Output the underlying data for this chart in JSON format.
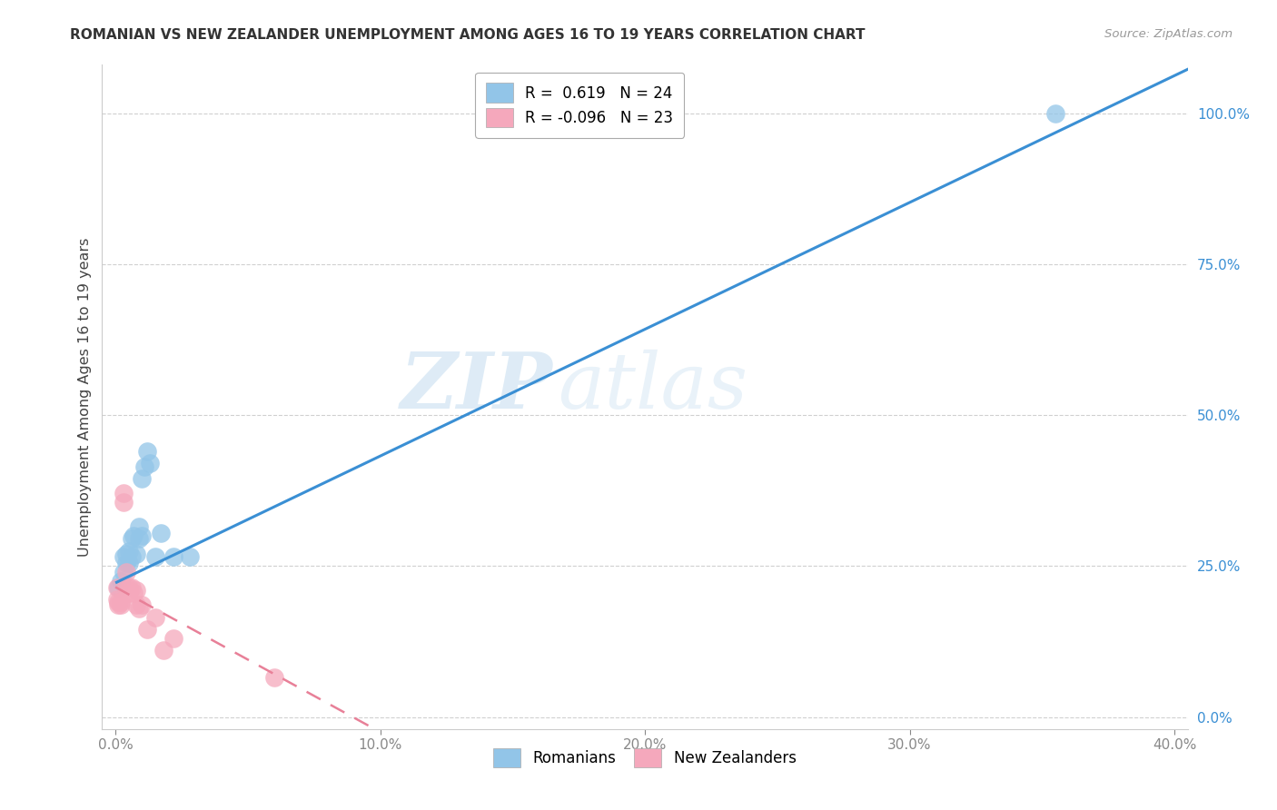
{
  "title": "ROMANIAN VS NEW ZEALANDER UNEMPLOYMENT AMONG AGES 16 TO 19 YEARS CORRELATION CHART",
  "source": "Source: ZipAtlas.com",
  "ylabel": "Unemployment Among Ages 16 to 19 years",
  "xlabel_ticks": [
    "0.0%",
    "10.0%",
    "20.0%",
    "30.0%",
    "40.0%"
  ],
  "xlabel_vals": [
    0.0,
    0.1,
    0.2,
    0.3,
    0.4
  ],
  "ylabel_ticks": [
    "0.0%",
    "25.0%",
    "50.0%",
    "75.0%",
    "100.0%"
  ],
  "ylabel_vals": [
    0.0,
    0.25,
    0.5,
    0.75,
    1.0
  ],
  "xlim": [
    -0.005,
    0.405
  ],
  "ylim": [
    -0.02,
    1.08
  ],
  "romanians_R": 0.619,
  "romanians_N": 24,
  "newzealanders_R": -0.096,
  "newzealanders_N": 23,
  "romanian_color": "#92c5e8",
  "newzealander_color": "#f5a8bc",
  "romanian_line_color": "#3a8fd4",
  "newzealander_line_color": "#e88098",
  "romanians_x": [
    0.001,
    0.002,
    0.003,
    0.003,
    0.004,
    0.004,
    0.005,
    0.005,
    0.006,
    0.006,
    0.007,
    0.008,
    0.009,
    0.009,
    0.01,
    0.01,
    0.011,
    0.012,
    0.013,
    0.015,
    0.017,
    0.022,
    0.028,
    0.355
  ],
  "romanians_y": [
    0.215,
    0.225,
    0.24,
    0.265,
    0.255,
    0.27,
    0.255,
    0.275,
    0.265,
    0.295,
    0.3,
    0.27,
    0.295,
    0.315,
    0.3,
    0.395,
    0.415,
    0.44,
    0.42,
    0.265,
    0.305,
    0.265,
    0.265,
    1.0
  ],
  "newzealanders_x": [
    0.0005,
    0.0005,
    0.001,
    0.001,
    0.002,
    0.002,
    0.003,
    0.003,
    0.004,
    0.004,
    0.005,
    0.005,
    0.006,
    0.007,
    0.008,
    0.008,
    0.009,
    0.01,
    0.012,
    0.015,
    0.018,
    0.022,
    0.06
  ],
  "newzealanders_y": [
    0.195,
    0.215,
    0.185,
    0.19,
    0.185,
    0.19,
    0.355,
    0.37,
    0.215,
    0.24,
    0.205,
    0.215,
    0.215,
    0.205,
    0.21,
    0.185,
    0.18,
    0.185,
    0.145,
    0.165,
    0.11,
    0.13,
    0.065
  ],
  "rom_line_intercept": 0.222,
  "rom_line_slope": 2.1,
  "nz_line_intercept": 0.215,
  "nz_line_slope": -2.4,
  "watermark_zip": "ZIP",
  "watermark_atlas": "atlas",
  "legend_label_rom": "R =  0.619   N = 24",
  "legend_label_nz": "R = -0.096   N = 23",
  "bottom_legend_rom": "Romanians",
  "bottom_legend_nz": "New Zealanders"
}
